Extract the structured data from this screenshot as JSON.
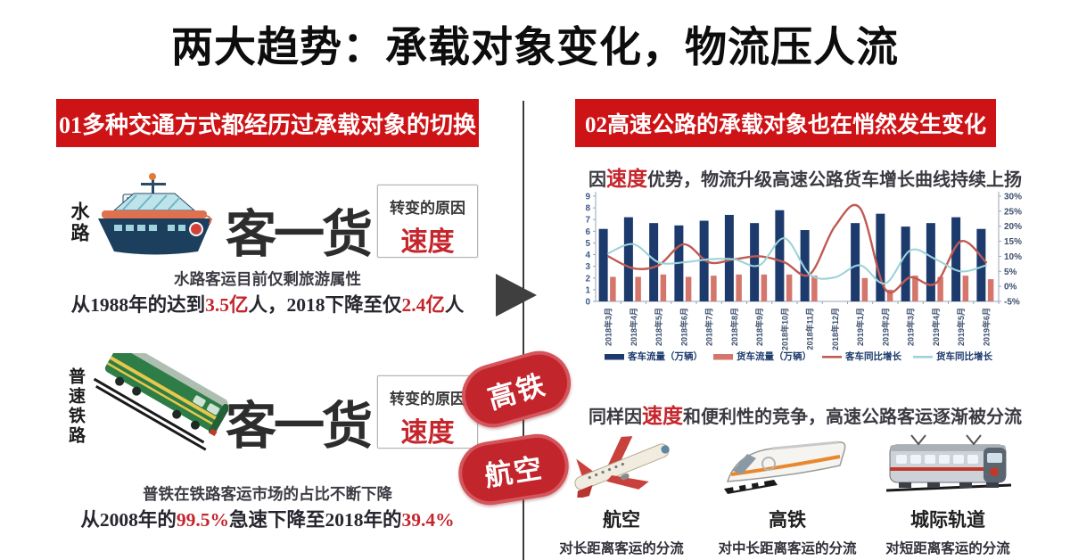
{
  "title": "两大趋势：承载对象变化，物流压人流",
  "left": {
    "banner": "01多种交通方式都经历过承载对象的切换",
    "water": {
      "side_label": "水路",
      "shift_text": "客一货",
      "reason_label": "转变的原因",
      "reason_value": "速度",
      "line1": "水路客运目前仅剩旅游属性",
      "line2a": "从1988年的达到",
      "line2b": "3.5亿",
      "line2c": "人，2018下降至仅",
      "line2d": "2.4亿",
      "line2e": "人"
    },
    "rail": {
      "side_label": "普速铁路",
      "shift_text": "客一货",
      "reason_label": "转变的原因",
      "reason_value": "速度",
      "line1": "普铁在铁路客运市场的占比不断下降",
      "line2a": "从2008年的",
      "line2b": "99.5%",
      "line2c": "急速下降至2018年的",
      "line2d": "39.4%"
    }
  },
  "middle": {
    "pills": [
      "高铁",
      "航空"
    ]
  },
  "right": {
    "banner": "02高速公路的承载对象也在悄然发生变化",
    "heading1": {
      "a": "因",
      "red": "速度",
      "b": "优势，物流升级高速公路货车增长曲线持续上扬"
    },
    "heading2": {
      "a": "同样因",
      "red": "速度",
      "b": "和便利性的竞争，高速公路客运逐渐被分流"
    },
    "modes": [
      {
        "name": "航空",
        "desc": "对长距离客运的分流",
        "icon": "airplane-icon"
      },
      {
        "name": "高铁",
        "desc": "对中长距离客运的分流",
        "icon": "high-speed-train-icon"
      },
      {
        "name": "城际轨道",
        "desc": "对短距离客运的分流",
        "icon": "metro-train-icon"
      }
    ]
  },
  "icons": {
    "water": "ship-icon",
    "rail": "green-train-icon",
    "middle_arrow": "arrow-right-icon"
  },
  "chart_data": {
    "type": "bar",
    "subtype": "bar-line-combo",
    "categories": [
      "2018年3月",
      "2018年4月",
      "2018年5月",
      "2018年6月",
      "2018年7月",
      "2018年8月",
      "2018年9月",
      "2018年10月",
      "2018年11月",
      "2018年12月",
      "2019年1月",
      "2019年2月",
      "2019年3月",
      "2019年4月",
      "2019年5月",
      "2019年6月"
    ],
    "series": [
      {
        "name": "客车流量（万辆）",
        "kind": "bar",
        "axis": "left",
        "color": "#1d3a6d",
        "values": [
          6.2,
          7.2,
          6.7,
          6.5,
          6.9,
          7.4,
          6.7,
          7.8,
          6.1,
          null,
          6.7,
          7.5,
          6.4,
          6.7,
          7.2,
          6.2
        ]
      },
      {
        "name": "货车流量（万辆）",
        "kind": "bar",
        "axis": "left",
        "color": "#d4766c",
        "values": [
          2.1,
          2.1,
          2.3,
          2.1,
          2.2,
          2.3,
          2.3,
          2.3,
          2.2,
          null,
          2.0,
          1.0,
          2.2,
          2.1,
          2.2,
          1.9
        ]
      },
      {
        "name": "客车同比增长",
        "kind": "line",
        "axis": "right",
        "color": "#c05a52",
        "values": [
          10,
          6,
          7,
          14,
          8,
          9,
          10,
          8,
          4,
          20,
          26,
          -1,
          3,
          1,
          15,
          8
        ]
      },
      {
        "name": "货车同比增长",
        "kind": "line",
        "axis": "right",
        "color": "#9cd3da",
        "values": [
          11,
          14,
          8,
          8,
          9,
          9,
          7,
          16,
          4,
          3,
          7,
          1,
          12,
          9,
          5,
          7
        ]
      }
    ],
    "left_axis": {
      "min": 0,
      "max": 9,
      "step": 1
    },
    "right_axis": {
      "min": -5,
      "max": 30,
      "step": 5,
      "suffix": "%"
    },
    "grid": false,
    "legend_position": "bottom"
  },
  "colors": {
    "banner_red": "#ce1317",
    "accent_red": "#c5262c",
    "pill_red": "#c2252b",
    "bar_navy": "#1d3a6d",
    "bar_salmon": "#d4766c",
    "line_red": "#c05a52",
    "line_cyan": "#9cd3da",
    "axis_text": "#3d5a8c",
    "dark_text": "#3a3a42"
  }
}
